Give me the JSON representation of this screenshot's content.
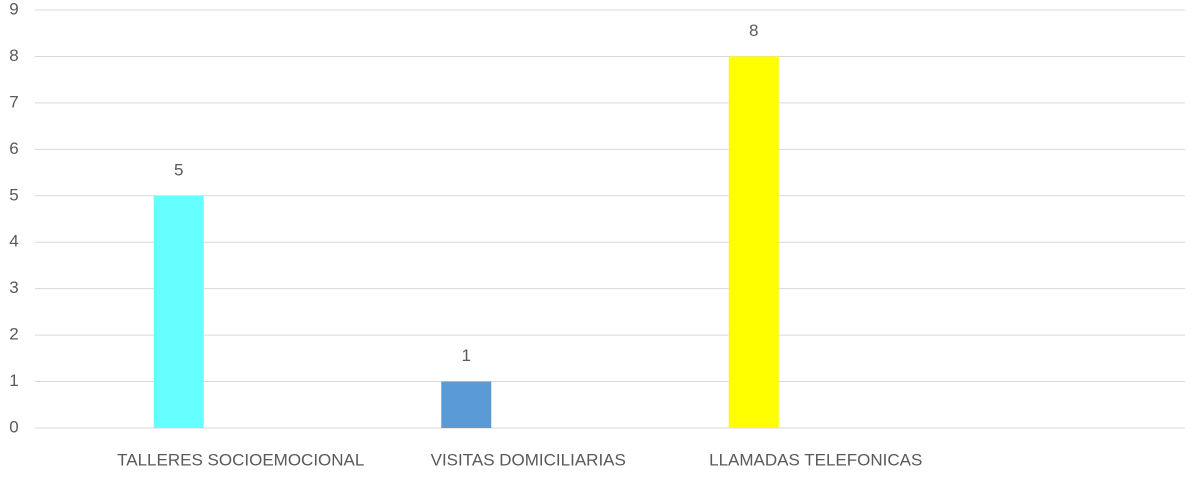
{
  "chart_data": {
    "type": "bar",
    "categories": [
      "TALLERES SOCIOEMOCIONAL",
      "VISITAS DOMICILIARIAS",
      "LLAMADAS TELEFONICAS",
      null
    ],
    "values": [
      5,
      1,
      8,
      null
    ],
    "colors": [
      "#66ffff",
      "#5b9bd5",
      "#ffff00",
      null
    ],
    "ylim": [
      0,
      9
    ],
    "yticks": [
      0,
      1,
      2,
      3,
      4,
      5,
      6,
      7,
      8,
      9
    ],
    "grid": true
  }
}
